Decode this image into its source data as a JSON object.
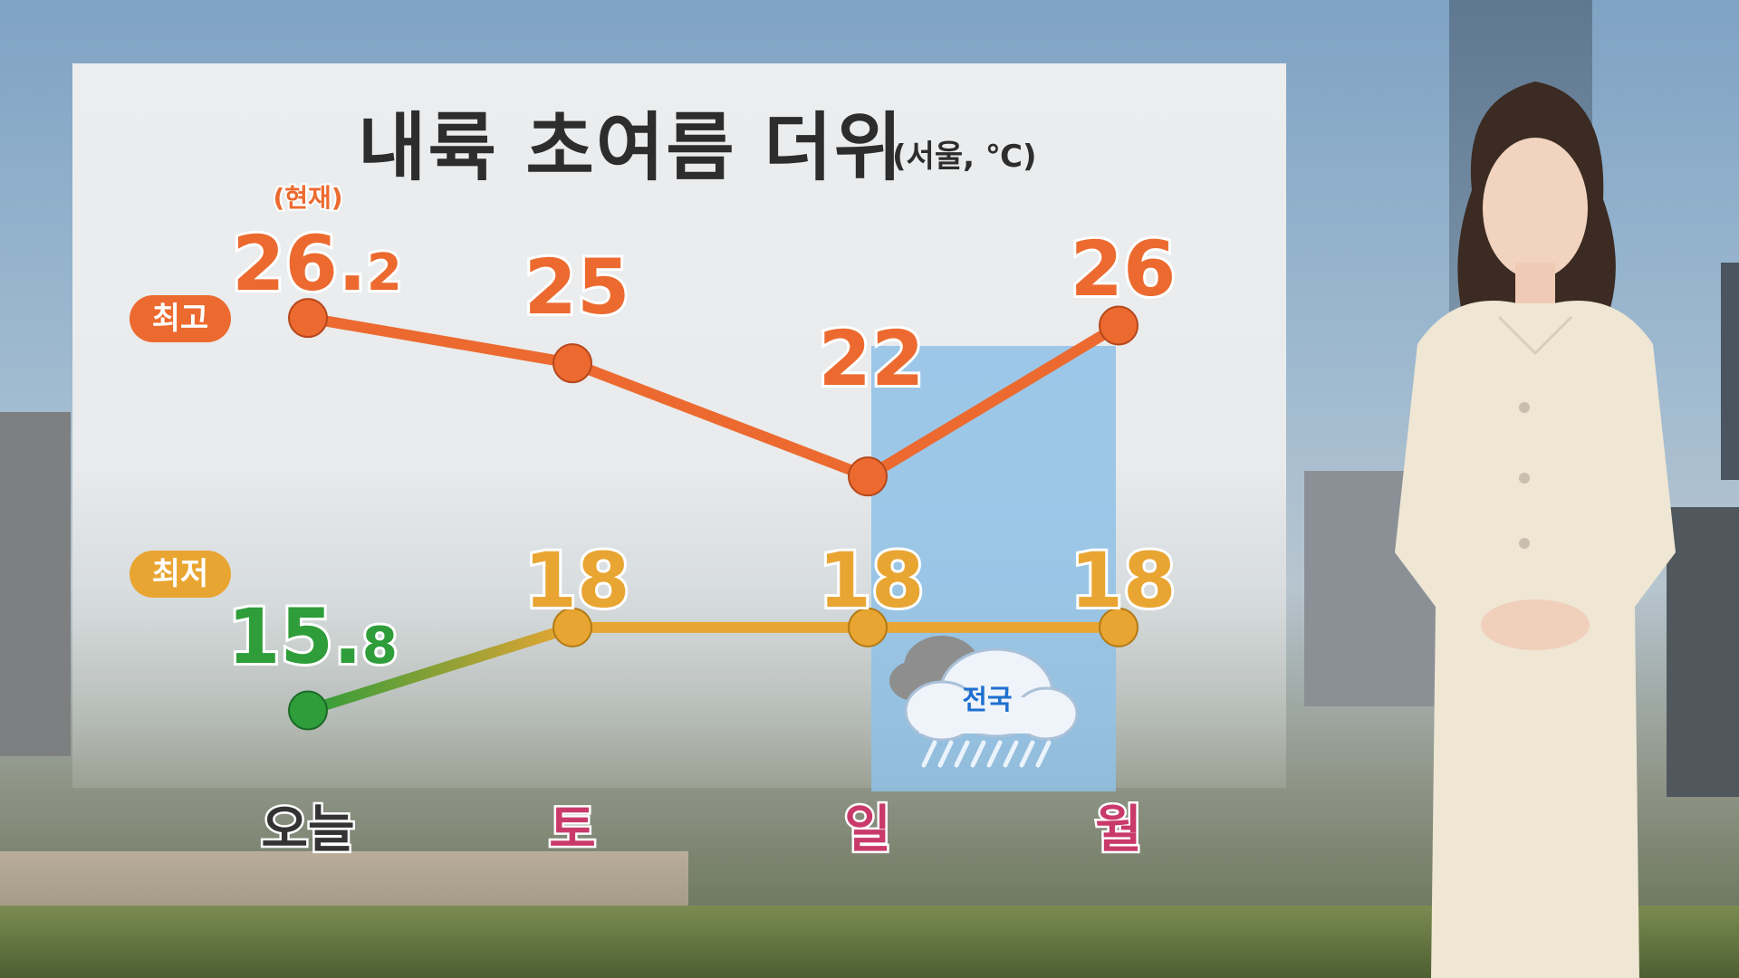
{
  "title": "내륙 초여름 더위",
  "unit_label": "(서울, ℃)",
  "series_labels": {
    "high": "최고",
    "low": "최저"
  },
  "current_note": "(현재)",
  "rain_label": "전국",
  "colors": {
    "high": "#ec6a2f",
    "low": "#e9a532",
    "today_low": "#2e9d3a",
    "day_weekend": "#c93a6a",
    "day_today": "#333333",
    "rain_band": "#8fc1e6"
  },
  "chart_data": {
    "type": "line",
    "title": "내륙 초여름 더위",
    "categories": [
      "오늘",
      "토",
      "일",
      "월"
    ],
    "series": [
      {
        "name": "최고",
        "values": [
          26.2,
          25,
          22,
          26
        ],
        "labels": [
          "26.2",
          "25",
          "22",
          "26"
        ]
      },
      {
        "name": "최저",
        "values": [
          15.8,
          18,
          18,
          18
        ],
        "labels": [
          "15.8",
          "18",
          "18",
          "18"
        ]
      }
    ],
    "annotations": [
      {
        "category": "오늘",
        "text": "(현재)"
      },
      {
        "category": "일",
        "text": "전국",
        "icon": "rain-cloud-icon"
      }
    ],
    "grid": false,
    "legend": "left"
  }
}
